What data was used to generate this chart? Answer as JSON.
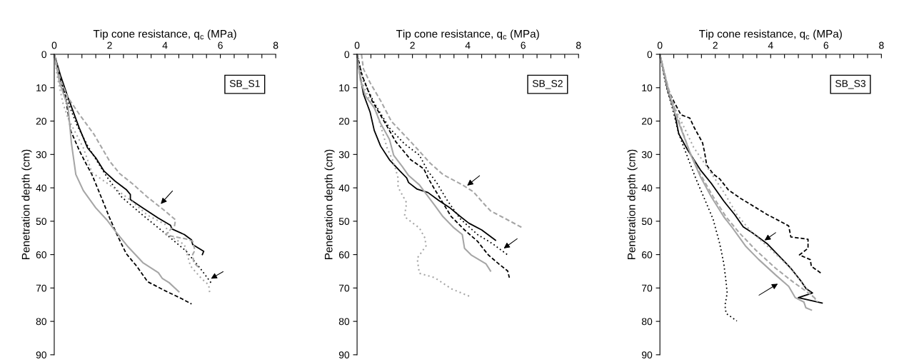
{
  "chart_data": [
    {
      "type": "line",
      "xlabel": "Tip cone resistance, q$_{c}$ (MPa)",
      "ylabel": "Penetration depth (cm)",
      "xlim": [
        0,
        8
      ],
      "ylim": [
        90,
        0
      ],
      "xticks": [
        0,
        {
          "value": 0.5,
          "label": null
        },
        {
          "value": 1,
          "label": null
        },
        {
          "value": 1.5,
          "label": null
        },
        2,
        {
          "value": 2.5,
          "label": null
        },
        {
          "value": 3,
          "label": null
        },
        {
          "value": 3.5,
          "label": null
        },
        4,
        {
          "value": 4.5,
          "label": null
        },
        {
          "value": 5,
          "label": null
        },
        {
          "value": 5.5,
          "label": null
        },
        6,
        {
          "value": 6.5,
          "label": null
        },
        {
          "value": 7,
          "label": null
        },
        {
          "value": 7.5,
          "label": null
        },
        8
      ],
      "yticks": [
        0,
        10,
        20,
        30,
        40,
        50,
        60,
        70,
        80,
        90
      ],
      "annotations": [
        "SB_S1"
      ],
      "series": [
        {
          "color": "#000000",
          "line_style": "solid",
          "x": [
            0,
            0.23,
            0.5,
            0.9,
            1.2,
            1.5,
            1.8,
            2.2,
            2.6,
            2.75,
            2.75,
            3.2,
            3.75,
            4.2,
            4.25,
            4.7,
            4.96,
            5.0,
            5.2,
            5.4,
            5.35
          ],
          "values": [
            0,
            6.4,
            13,
            22,
            28,
            31,
            35,
            38,
            40.5,
            42,
            43.5,
            46,
            49,
            51.2,
            52.3,
            54,
            55.6,
            57,
            58,
            59,
            60
          ]
        },
        {
          "color": "#000000",
          "line_style": "dashed",
          "x": [
            0,
            0.15,
            0.4,
            0.6,
            0.9,
            1.1,
            1.36,
            1.6,
            2.0,
            2.3,
            2.6,
            3.0,
            3.37,
            4.0,
            4.6,
            4.96
          ],
          "values": [
            0,
            5,
            12.5,
            23,
            28.7,
            32,
            36,
            40.8,
            49,
            54.6,
            59.7,
            63.7,
            68.1,
            70.8,
            73.2,
            74.8
          ]
        },
        {
          "color": "#000000",
          "line_style": "dotted",
          "x": [
            0,
            0.19,
            0.43,
            0.81,
            1.2,
            1.5,
            1.9,
            2.44,
            3.2,
            4.0,
            4.77,
            5.3,
            5.66
          ],
          "values": [
            0,
            7,
            13,
            21,
            27.3,
            31.4,
            36.7,
            42.8,
            48.2,
            53.6,
            59,
            64.4,
            68.4
          ]
        },
        {
          "color": "#a6a6a6",
          "line_style": "solid",
          "x": [
            0,
            0.19,
            0.5,
            0.62,
            0.78,
            1.05,
            1.5,
            1.9,
            2.2,
            2.67,
            3.2,
            3.76,
            3.9,
            4.15,
            4.5
          ],
          "values": [
            0,
            8.4,
            15.8,
            26.6,
            36,
            40.8,
            46,
            49.6,
            52.9,
            57.7,
            62.4,
            65.4,
            67.1,
            68.4,
            71.1
          ]
        },
        {
          "color": "#a6a6a6",
          "line_style": "dashed",
          "x": [
            0,
            0.23,
            0.5,
            0.9,
            1.43,
            2.0,
            2.36,
            2.83,
            3.37,
            4.0,
            4.38,
            4.34,
            4.22,
            4.03,
            4.3,
            4.77,
            5.0,
            5.08,
            5.0,
            5.04,
            5.2
          ],
          "values": [
            0,
            7.8,
            13,
            17.9,
            23.9,
            32,
            35.7,
            38.8,
            42.8,
            46.9,
            49.6,
            51.6,
            52.3,
            54,
            54.6,
            55.3,
            56,
            58.7,
            60,
            62.4,
            63.7
          ]
        },
        {
          "color": "#a6a6a6",
          "line_style": "dotted",
          "x": [
            0,
            0.12,
            0.31,
            0.5,
            1.05,
            1.28,
            1.36,
            1.82,
            2.29,
            2.83,
            3.37,
            4.0,
            4.15,
            4.7,
            4.84,
            4.92,
            5.31,
            5.58,
            5.62
          ],
          "values": [
            0,
            7,
            14.5,
            19.2,
            28,
            33.4,
            35.4,
            38.1,
            40.8,
            44.2,
            48.2,
            50.9,
            54.3,
            57,
            61,
            63.4,
            67.1,
            69.1,
            71.8
          ]
        }
      ]
    },
    {
      "type": "line",
      "xlabel": "Tip cone resistance, q$_{c}$ (MPa)",
      "ylabel": "Penetration depth (cm)",
      "xlim": [
        0,
        8
      ],
      "ylim": [
        90,
        0
      ],
      "xticks": [
        0,
        {
          "value": 0.5,
          "label": null
        },
        {
          "value": 1,
          "label": null
        },
        {
          "value": 1.5,
          "label": null
        },
        2,
        {
          "value": 2.5,
          "label": null
        },
        {
          "value": 3,
          "label": null
        },
        {
          "value": 3.5,
          "label": null
        },
        4,
        {
          "value": 4.5,
          "label": null
        },
        {
          "value": 5,
          "label": null
        },
        {
          "value": 5.5,
          "label": null
        },
        6,
        {
          "value": 6.5,
          "label": null
        },
        {
          "value": 7,
          "label": null
        },
        {
          "value": 7.5,
          "label": null
        },
        8
      ],
      "yticks": [
        0,
        10,
        20,
        30,
        40,
        50,
        60,
        70,
        80,
        90
      ],
      "annotations": [
        "SB_S2"
      ],
      "series": [
        {
          "color": "#000000",
          "line_style": "solid",
          "x": [
            0,
            0.08,
            0.23,
            0.47,
            0.62,
            0.85,
            1.17,
            1.55,
            1.79,
            1.86,
            2.17,
            2.56,
            2.95,
            3.34,
            3.73,
            4.04,
            4.5,
            5.0
          ],
          "values": [
            0,
            5.1,
            11.9,
            17.3,
            22.8,
            27.5,
            31.6,
            35,
            37,
            38.4,
            40.4,
            41.4,
            43.8,
            45.9,
            48.6,
            50.6,
            52.6,
            55.7
          ]
        },
        {
          "color": "#000000",
          "line_style": "dashed",
          "x": [
            0,
            0.16,
            0.54,
            0.93,
            1.4,
            1.94,
            2.41,
            2.56,
            2.8,
            3.1,
            3.4,
            3.88,
            4.35,
            4.74,
            5.12,
            5.44,
            5.5
          ],
          "values": [
            0,
            5.8,
            13.9,
            19.4,
            26.2,
            31.6,
            34.3,
            37,
            40.4,
            44.5,
            48.6,
            52.6,
            56,
            60.1,
            62.8,
            64.9,
            66.9
          ]
        },
        {
          "color": "#000000",
          "line_style": "dotted",
          "x": [
            0,
            0.23,
            0.62,
            1.17,
            1.71,
            2.25,
            2.56,
            2.87,
            3.26,
            3.73,
            4.35,
            4.89,
            5.44
          ],
          "values": [
            0,
            7.8,
            14.6,
            22.1,
            26.8,
            30.2,
            35,
            38.4,
            43.8,
            49.3,
            54,
            56.7,
            60.1
          ]
        },
        {
          "color": "#a6a6a6",
          "line_style": "solid",
          "x": [
            0,
            0.12,
            0.31,
            0.62,
            0.85,
            1.17,
            1.32,
            1.63,
            1.86,
            2.25,
            2.49,
            2.8,
            3.1,
            3.5,
            3.8,
            3.88,
            4.12,
            4.66,
            4.82
          ],
          "values": [
            0,
            7.8,
            12.6,
            16,
            20.7,
            25.5,
            30.2,
            33.6,
            36.3,
            39.1,
            41.8,
            45.2,
            48.6,
            52,
            54,
            58.1,
            60.1,
            62.8,
            64.9
          ]
        },
        {
          "color": "#a6a6a6",
          "line_style": "dashed",
          "x": [
            0.16,
            0.23,
            0.47,
            0.85,
            1.24,
            1.94,
            2.64,
            3.1,
            3.8,
            4.19,
            4.66,
            4.82,
            5.05,
            5.44,
            5.98
          ],
          "values": [
            0,
            4.4,
            8.5,
            13.9,
            20.1,
            26.2,
            32.6,
            36,
            39.1,
            41.1,
            45.5,
            46.9,
            47.9,
            49.6,
            52
          ]
        },
        {
          "color": "#a6a6a6",
          "line_style": "dotted",
          "x": [
            0,
            0.12,
            0.39,
            0.7,
            0.85,
            1.09,
            1.32,
            1.48,
            1.48,
            1.79,
            1.71,
            2.02,
            2.25,
            2.45,
            2.49,
            2.17,
            2.25,
            2.8,
            3.42,
            4.12
          ],
          "values": [
            0,
            7.1,
            12.6,
            17.3,
            21.4,
            28.2,
            32.3,
            37,
            39.8,
            44.5,
            48.6,
            50.6,
            52,
            55,
            57.4,
            61.1,
            65.6,
            66.9,
            70.3,
            72.7
          ]
        }
      ]
    },
    {
      "type": "line",
      "xlabel": "Tip cone resistance, q$_{c}$ (MPa)",
      "ylabel": "Penetration depth (cm)",
      "xlim": [
        0,
        8
      ],
      "ylim": [
        90,
        0
      ],
      "xticks": [
        0,
        {
          "value": 0.5,
          "label": null
        },
        {
          "value": 1,
          "label": null
        },
        {
          "value": 1.5,
          "label": null
        },
        2,
        {
          "value": 2.5,
          "label": null
        },
        {
          "value": 3,
          "label": null
        },
        {
          "value": 3.5,
          "label": null
        },
        4,
        {
          "value": 4.5,
          "label": null
        },
        {
          "value": 5,
          "label": null
        },
        {
          "value": 5.5,
          "label": null
        },
        6,
        {
          "value": 6.5,
          "label": null
        },
        {
          "value": 7,
          "label": null
        },
        {
          "value": 7.5,
          "label": null
        },
        8
      ],
      "yticks": [
        0,
        10,
        20,
        30,
        40,
        50,
        60,
        70,
        80,
        90
      ],
      "annotations": [
        "SB_S3"
      ],
      "series": [
        {
          "color": "#000000",
          "line_style": "solid",
          "x": [
            0,
            0.29,
            0.52,
            0.68,
            0.99,
            1.46,
            1.85,
            2.31,
            2.7,
            3.01,
            3.33,
            3.87,
            4.5,
            4.73,
            5.12,
            5.28,
            5.51,
            5.0,
            5.86
          ],
          "values": [
            0,
            11.1,
            17.1,
            23.8,
            28.5,
            34.6,
            38.6,
            44,
            48,
            51.7,
            53.4,
            56.7,
            62.1,
            64.1,
            68.2,
            70.2,
            71.5,
            72.9,
            74.5
          ]
        },
        {
          "color": "#000000",
          "line_style": "dashed",
          "x": [
            0,
            0.29,
            0.52,
            0.76,
            1.08,
            1.23,
            1.54,
            1.61,
            1.69,
            1.93,
            2.16,
            2.47,
            2.94,
            3.48,
            3.87,
            4.34,
            4.65,
            4.73,
            5.35,
            5.35,
            5.04,
            5.43,
            5.47,
            5.86
          ],
          "values": [
            0,
            10.4,
            14.4,
            18.1,
            19.1,
            21.8,
            26.5,
            29.2,
            33.2,
            35.9,
            37.3,
            40.6,
            43.3,
            46,
            48,
            50,
            51.4,
            54.7,
            55.4,
            58.1,
            60.1,
            61.5,
            63.5,
            65.8
          ]
        },
        {
          "color": "#000000",
          "line_style": "dotted",
          "x": [
            0,
            0.21,
            0.44,
            0.68,
            0.99,
            1.3,
            1.61,
            1.92,
            2.16,
            2.31,
            2.39,
            2.43,
            2.35,
            2.39,
            2.78
          ],
          "values": [
            0,
            9.1,
            15.8,
            23.8,
            30.6,
            37.3,
            43.3,
            49.4,
            56.7,
            62.8,
            68.2,
            71.5,
            75.2,
            77.6,
            79.9
          ]
        },
        {
          "color": "#a6a6a6",
          "line_style": "solid",
          "x": [
            0,
            0.29,
            0.52,
            0.83,
            1.14,
            1.46,
            1.85,
            2.31,
            2.62,
            3.09,
            3.56,
            4.18,
            4.65,
            4.89,
            5.2,
            5.27,
            5.47
          ],
          "values": [
            0,
            10.4,
            17.1,
            23.8,
            30.6,
            36.6,
            42.6,
            48.7,
            52,
            57.4,
            61.4,
            66.1,
            69.5,
            72.9,
            74.2,
            75.9,
            76.6
          ]
        },
        {
          "color": "#a6a6a6",
          "line_style": "dashed",
          "x": [
            0,
            0.29,
            0.52,
            0.76,
            1.07,
            1.46,
            1.92,
            2.39,
            2.86,
            3.48,
            4.18,
            4.81,
            5.27,
            5.58,
            5.7
          ],
          "values": [
            0,
            9.7,
            15.8,
            21.8,
            29.2,
            35.9,
            42.6,
            48.7,
            53.4,
            58.8,
            64.1,
            68.2,
            70.9,
            72.9,
            74.2
          ]
        },
        {
          "color": "#a6a6a6",
          "line_style": "dotted",
          "x": [
            0,
            0.29,
            0.52,
            0.91,
            1.22,
            1.77,
            2.31,
            2.78,
            3.25,
            3.87,
            4.65,
            5.12,
            5.43,
            5.62
          ],
          "values": [
            0,
            11.1,
            15.8,
            22.5,
            27.9,
            34.6,
            41.3,
            48,
            52.7,
            57.4,
            63.5,
            68.2,
            71.5,
            73.5
          ]
        }
      ]
    }
  ]
}
